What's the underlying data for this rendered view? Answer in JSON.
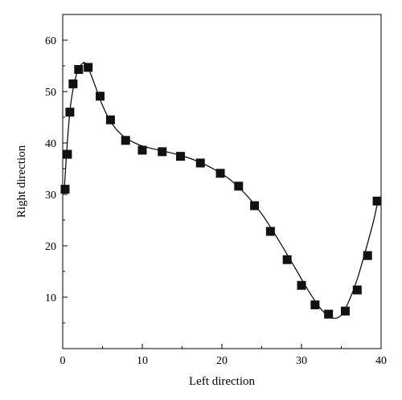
{
  "chart_data": {
    "type": "scatter",
    "title": "",
    "xlabel": "Left direction",
    "ylabel": "Right direction",
    "xlim": [
      0,
      40
    ],
    "ylim": [
      0,
      65
    ],
    "xticks": [
      0,
      10,
      20,
      30,
      40
    ],
    "yticks": [
      10,
      20,
      30,
      40,
      50,
      60
    ],
    "grid": false,
    "colors": {
      "marker": "#111111",
      "line": "#000000"
    },
    "series": [
      {
        "kind": "points",
        "x": [
          0.3,
          0.6,
          0.9,
          1.3,
          2.0,
          3.2,
          4.7,
          6.0,
          7.9,
          10.0,
          12.5,
          14.8,
          17.3,
          19.8,
          22.1,
          24.1,
          26.1,
          28.2,
          30.0,
          31.7,
          33.4,
          35.5,
          37.0,
          38.3,
          39.5
        ],
        "y": [
          31.0,
          37.8,
          46.0,
          51.5,
          54.3,
          54.7,
          49.1,
          44.5,
          40.5,
          38.6,
          38.3,
          37.4,
          36.1,
          34.1,
          31.6,
          27.8,
          22.8,
          17.3,
          12.3,
          8.5,
          6.7,
          7.3,
          11.4,
          18.1,
          28.7
        ]
      },
      {
        "kind": "fit",
        "x": [
          0.2,
          0.6,
          1.0,
          1.5,
          2.0,
          2.6,
          3.0,
          3.5,
          4.2,
          5.0,
          6.0,
          7.0,
          8.0,
          9.5,
          11.0,
          13.0,
          15.0,
          17.0,
          19.0,
          21.0,
          23.0,
          25.0,
          27.0,
          29.0,
          30.5,
          32.0,
          33.0,
          34.0,
          35.0,
          36.0,
          37.0,
          38.0,
          39.0,
          39.5
        ],
        "y": [
          31.0,
          40.5,
          47.5,
          52.0,
          54.4,
          55.6,
          55.2,
          53.5,
          50.6,
          47.3,
          44.2,
          42.2,
          40.9,
          39.7,
          39.0,
          38.3,
          37.5,
          36.4,
          34.9,
          32.9,
          30.0,
          26.2,
          21.4,
          16.2,
          12.2,
          8.6,
          6.8,
          5.9,
          6.5,
          9.4,
          13.5,
          18.8,
          24.5,
          28.0
        ]
      }
    ]
  }
}
